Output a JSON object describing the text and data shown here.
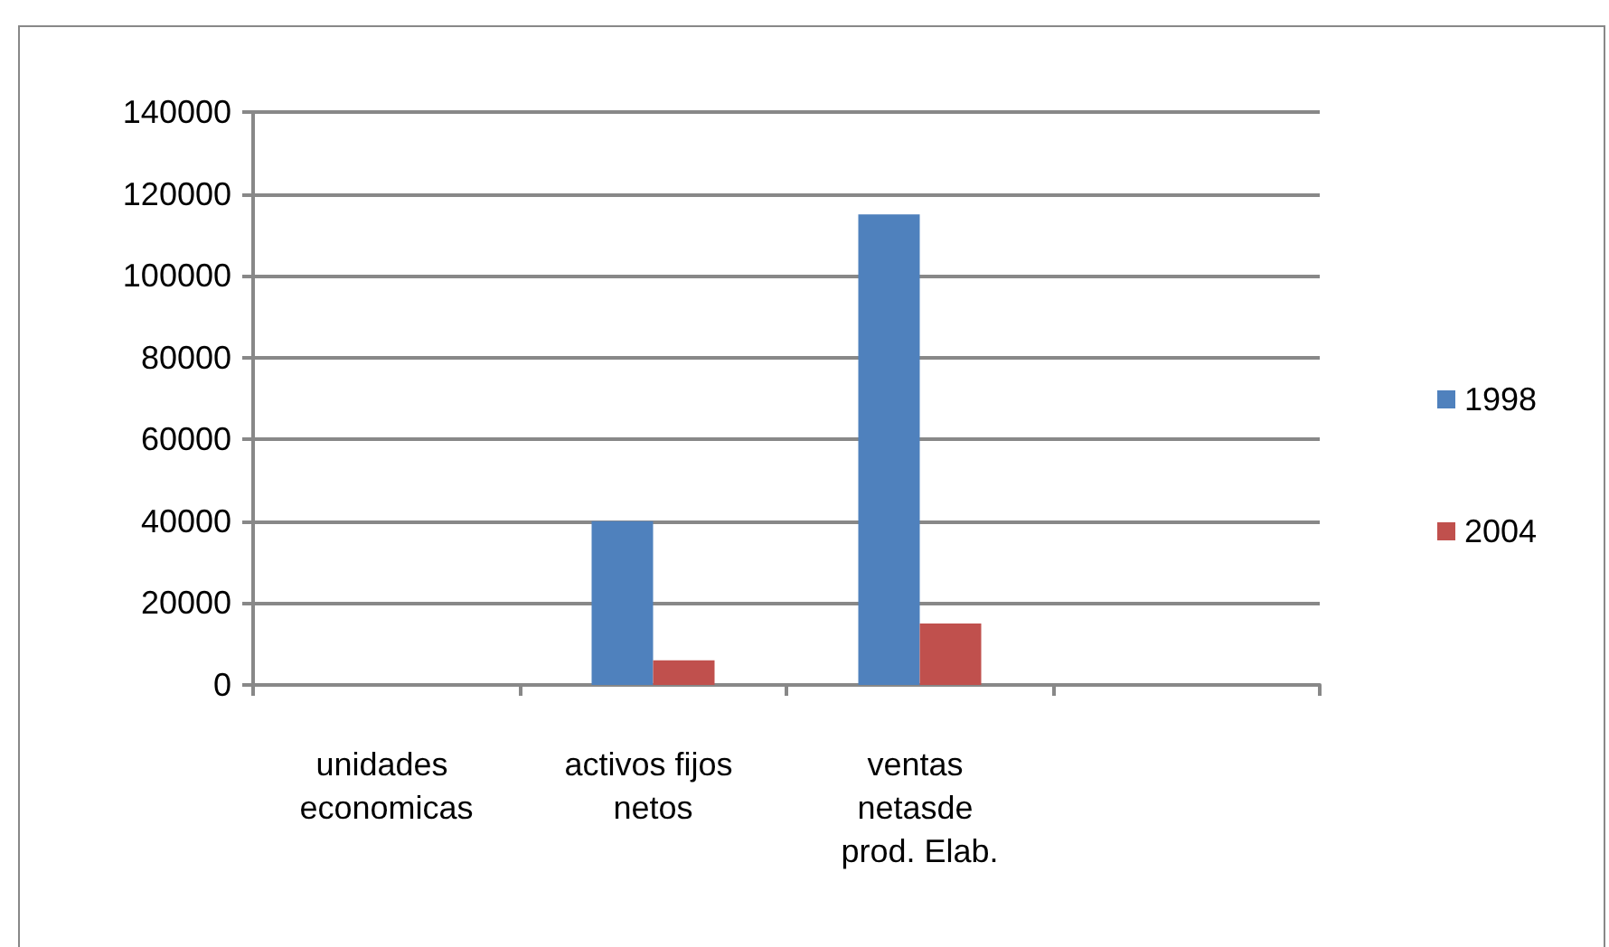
{
  "chart_data": {
    "type": "bar",
    "categories": [
      "unidades economicas",
      "activos fijos netos",
      "ventas netasde prod. Elab.",
      null
    ],
    "series": [
      {
        "name": "1998",
        "color": "#4f81bd",
        "values": [
          0,
          40000,
          115000,
          null
        ]
      },
      {
        "name": "2004",
        "color": "#c0504d",
        "values": [
          0,
          6000,
          15000,
          null
        ]
      }
    ],
    "ylim": [
      0,
      140000
    ],
    "yticks": [
      0,
      20000,
      40000,
      60000,
      80000,
      100000,
      120000,
      140000
    ],
    "grid": "y",
    "legend": "right"
  }
}
